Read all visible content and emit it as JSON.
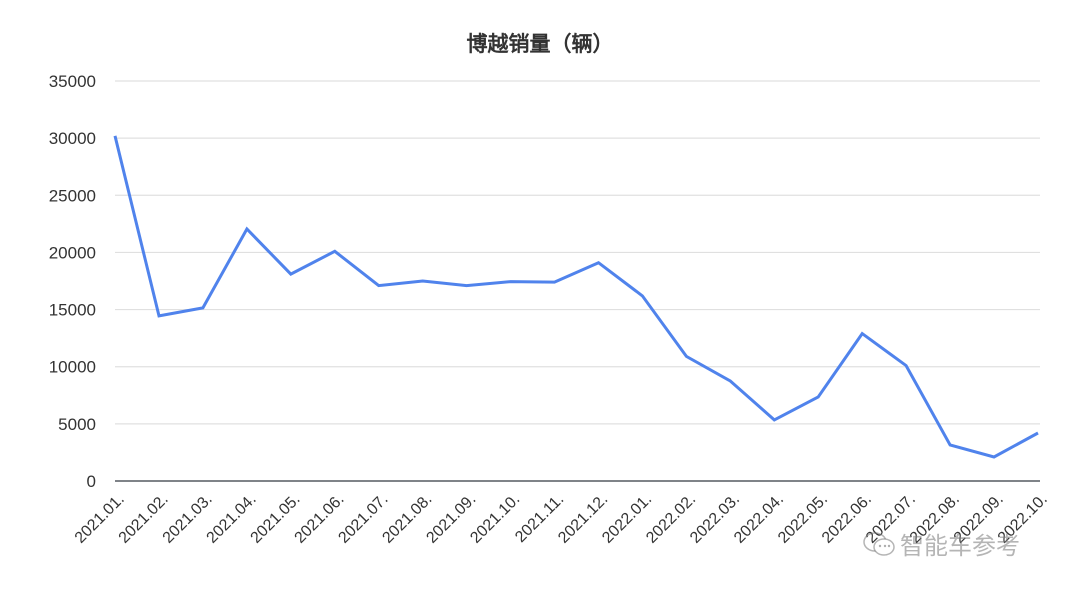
{
  "chart_data": {
    "type": "line",
    "title": "博越销量（辆）",
    "xlabel": "",
    "ylabel": "",
    "ylim": [
      0,
      35000
    ],
    "yticks": [
      0,
      5000,
      10000,
      15000,
      20000,
      25000,
      30000,
      35000
    ],
    "grid": true,
    "legend": null,
    "categories": [
      "2021.01.",
      "2021.02.",
      "2021.03.",
      "2021.04.",
      "2021.05.",
      "2021.06.",
      "2021.07.",
      "2021.08.",
      "2021.09.",
      "2021.10.",
      "2021.11.",
      "2021.12.",
      "2022.01.",
      "2022.02.",
      "2022.03.",
      "2022.04.",
      "2022.05.",
      "2022.06.",
      "2022.07.",
      "2022.08.",
      "2022.09.",
      "2022.10."
    ],
    "series": [
      {
        "name": "博越销量",
        "color": "#5083ec",
        "values": [
          30200,
          14450,
          15150,
          22050,
          18100,
          20100,
          17100,
          17500,
          17100,
          17450,
          17400,
          19100,
          16200,
          10900,
          8750,
          5350,
          7350,
          12900,
          10100,
          3150,
          2100,
          4200
        ]
      }
    ]
  },
  "watermark": {
    "text": "智能车参考",
    "icon": "wechat-icon"
  }
}
